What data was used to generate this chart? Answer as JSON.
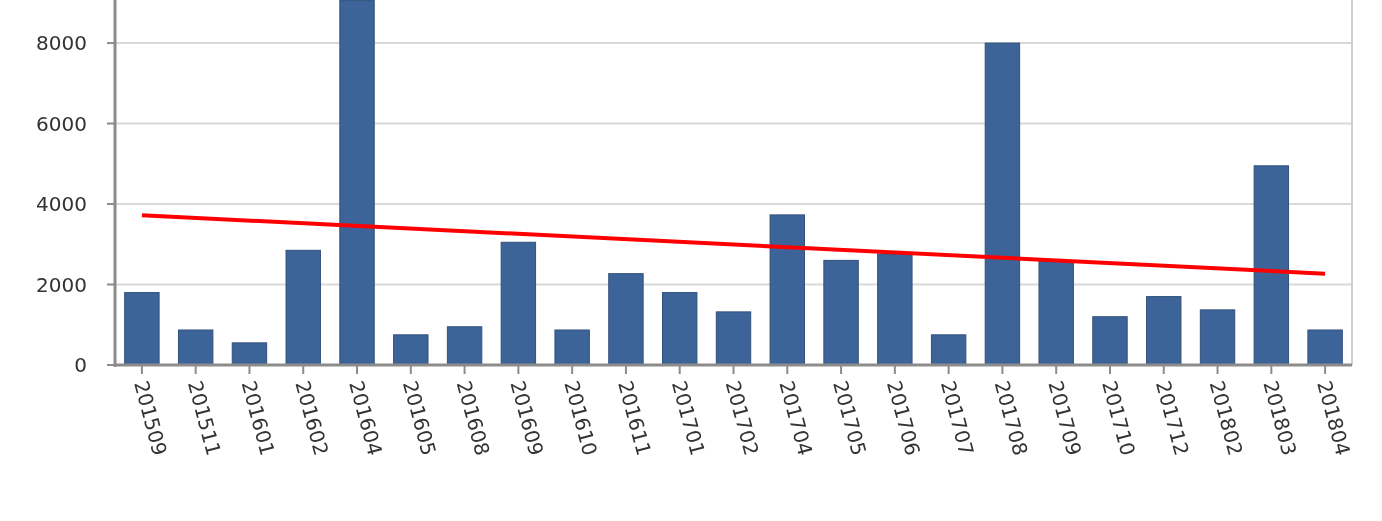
{
  "chart_data": {
    "type": "bar",
    "categories": [
      "201509",
      "201511",
      "201601",
      "201602",
      "201604",
      "201605",
      "201608",
      "201609",
      "201610",
      "201611",
      "201701",
      "201702",
      "201704",
      "201705",
      "201706",
      "201707",
      "201708",
      "201709",
      "201710",
      "201712",
      "201802",
      "201803",
      "201804"
    ],
    "series": [
      {
        "color": "#3d6499",
        "values": [
          1800,
          870,
          550,
          2850,
          9060,
          750,
          950,
          3050,
          870,
          2270,
          1800,
          1320,
          3730,
          2600,
          2760,
          750,
          8000,
          2570,
          1200,
          1700,
          1370,
          4950,
          870
        ]
      },
      {
        "type": "line",
        "color": "#ff0000",
        "x": [
          "201509",
          "201804"
        ],
        "values": [
          3720,
          2270
        ]
      }
    ],
    "ylim": [
      0,
      9070
    ],
    "yticks": [
      0,
      2000,
      4000,
      6000,
      8000
    ],
    "grid": "y"
  }
}
